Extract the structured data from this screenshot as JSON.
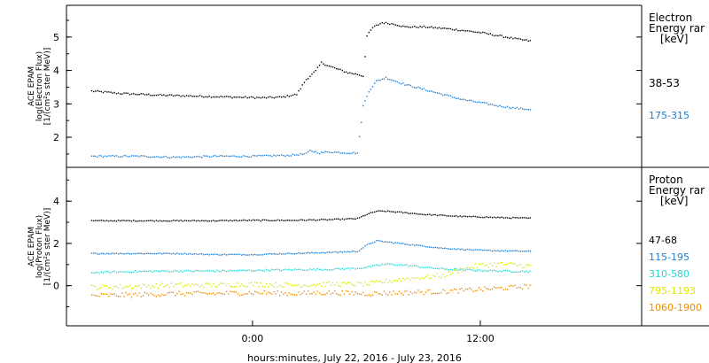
{
  "footer": {
    "xlabel": "hours:minutes, July 22, 2016 - July 23, 2016"
  },
  "colors": {
    "black": "#000000",
    "blue": "#1e7fd6",
    "cyan": "#22d6d6",
    "yellow": "#d8e800",
    "orange": "#f08c00"
  },
  "chart_data": [
    {
      "type": "scatter",
      "panel": "electron",
      "ylabel_lines": [
        "ACE EPAM",
        "log(Electron Flux)",
        "[1/(cm²s ster MeV)]"
      ],
      "legend_title_lines": [
        "Electron",
        "Energy rar",
        "[keV]"
      ],
      "x_ticks": [],
      "y_ticks": [
        2,
        3,
        4,
        5
      ],
      "ylim": [
        1.1,
        5.95
      ],
      "xlim_hours": [
        -9.8,
        20.5
      ],
      "series": [
        {
          "name": "38-53",
          "color": "black",
          "points": [
            [
              -8.5,
              3.4
            ],
            [
              -7.0,
              3.33
            ],
            [
              -5.0,
              3.28
            ],
            [
              -3.0,
              3.25
            ],
            [
              -1.0,
              3.22
            ],
            [
              0.5,
              3.2
            ],
            [
              1.5,
              3.22
            ],
            [
              2.3,
              3.3
            ],
            [
              2.8,
              3.75
            ],
            [
              3.3,
              4.0
            ],
            [
              3.6,
              4.25
            ],
            [
              4.0,
              4.15
            ],
            [
              4.5,
              4.05
            ],
            [
              5.0,
              3.95
            ],
            [
              5.5,
              3.9
            ],
            [
              5.8,
              3.85
            ],
            [
              6.0,
              5.05
            ],
            [
              6.3,
              5.3
            ],
            [
              6.8,
              5.45
            ],
            [
              7.5,
              5.4
            ],
            [
              8.0,
              5.32
            ],
            [
              9.0,
              5.32
            ],
            [
              10.0,
              5.28
            ],
            [
              11.0,
              5.22
            ],
            [
              12.0,
              5.15
            ],
            [
              13.0,
              5.05
            ],
            [
              14.0,
              4.95
            ],
            [
              14.6,
              4.9
            ]
          ]
        },
        {
          "name": "175-315",
          "color": "blue",
          "points": [
            [
              -8.5,
              1.45
            ],
            [
              -6.0,
              1.45
            ],
            [
              -4.0,
              1.42
            ],
            [
              -2.0,
              1.45
            ],
            [
              0.0,
              1.45
            ],
            [
              2.0,
              1.48
            ],
            [
              2.8,
              1.52
            ],
            [
              3.0,
              1.62
            ],
            [
              3.5,
              1.55
            ],
            [
              4.0,
              1.58
            ],
            [
              5.0,
              1.55
            ],
            [
              5.5,
              1.55
            ],
            [
              5.8,
              2.95
            ],
            [
              6.1,
              3.4
            ],
            [
              6.5,
              3.7
            ],
            [
              7.0,
              3.8
            ],
            [
              7.5,
              3.7
            ],
            [
              8.0,
              3.6
            ],
            [
              9.0,
              3.45
            ],
            [
              10.0,
              3.3
            ],
            [
              11.0,
              3.15
            ],
            [
              12.0,
              3.05
            ],
            [
              13.0,
              2.95
            ],
            [
              14.0,
              2.88
            ],
            [
              14.6,
              2.85
            ]
          ]
        }
      ]
    },
    {
      "type": "scatter",
      "panel": "proton",
      "ylabel_lines": [
        "ACE EPAM",
        "log(Proton Flux)",
        "[1/(cm²s ster MeV)]"
      ],
      "legend_title_lines": [
        "Proton",
        "Energy rar",
        "[keV]"
      ],
      "x_ticks": [
        {
          "hour": 0,
          "label": "0:00"
        },
        {
          "hour": 12,
          "label": "12:00"
        }
      ],
      "y_ticks": [
        0,
        2,
        4
      ],
      "ylim": [
        -1.9,
        5.6
      ],
      "xlim_hours": [
        -9.8,
        20.5
      ],
      "series": [
        {
          "name": "47-68",
          "color": "black",
          "points": [
            [
              -8.5,
              3.1
            ],
            [
              -6.0,
              3.1
            ],
            [
              -4.0,
              3.1
            ],
            [
              -2.0,
              3.1
            ],
            [
              0.0,
              3.12
            ],
            [
              2.0,
              3.12
            ],
            [
              4.0,
              3.15
            ],
            [
              5.5,
              3.2
            ],
            [
              6.0,
              3.4
            ],
            [
              6.5,
              3.55
            ],
            [
              7.0,
              3.55
            ],
            [
              8.0,
              3.48
            ],
            [
              9.0,
              3.4
            ],
            [
              10.0,
              3.35
            ],
            [
              11.0,
              3.3
            ],
            [
              12.0,
              3.28
            ],
            [
              13.0,
              3.25
            ],
            [
              14.6,
              3.22
            ]
          ]
        },
        {
          "name": "115-195",
          "color": "blue",
          "points": [
            [
              -8.5,
              1.55
            ],
            [
              -6.0,
              1.55
            ],
            [
              -4.0,
              1.55
            ],
            [
              -2.0,
              1.5
            ],
            [
              0.0,
              1.5
            ],
            [
              2.0,
              1.55
            ],
            [
              4.0,
              1.6
            ],
            [
              5.5,
              1.65
            ],
            [
              6.0,
              1.95
            ],
            [
              6.5,
              2.15
            ],
            [
              7.0,
              2.1
            ],
            [
              8.0,
              2.0
            ],
            [
              9.0,
              1.9
            ],
            [
              10.0,
              1.8
            ],
            [
              11.0,
              1.75
            ],
            [
              12.0,
              1.7
            ],
            [
              13.0,
              1.68
            ],
            [
              14.6,
              1.65
            ]
          ]
        },
        {
          "name": "310-580",
          "color": "cyan",
          "points": [
            [
              -8.5,
              0.65
            ],
            [
              -6.0,
              0.7
            ],
            [
              -4.0,
              0.72
            ],
            [
              -2.0,
              0.72
            ],
            [
              0.0,
              0.75
            ],
            [
              2.0,
              0.78
            ],
            [
              4.0,
              0.8
            ],
            [
              5.5,
              0.85
            ],
            [
              6.0,
              0.9
            ],
            [
              7.0,
              1.05
            ],
            [
              8.0,
              1.0
            ],
            [
              9.0,
              0.9
            ],
            [
              10.0,
              0.82
            ],
            [
              11.0,
              0.78
            ],
            [
              12.0,
              0.75
            ],
            [
              13.0,
              0.72
            ],
            [
              14.6,
              0.7
            ]
          ]
        },
        {
          "name": "795-1193",
          "color": "yellow",
          "points": [
            [
              -8.5,
              -0.05
            ],
            [
              -6.0,
              0.0
            ],
            [
              -4.0,
              0.05
            ],
            [
              -2.0,
              0.05
            ],
            [
              0.0,
              0.1
            ],
            [
              2.0,
              0.05
            ],
            [
              4.0,
              0.1
            ],
            [
              6.0,
              0.1
            ],
            [
              8.0,
              0.35
            ],
            [
              10.0,
              0.5
            ],
            [
              11.0,
              0.8
            ],
            [
              12.0,
              1.0
            ],
            [
              13.0,
              1.05
            ],
            [
              14.0,
              1.0
            ],
            [
              14.6,
              0.95
            ]
          ]
        },
        {
          "name": "1060-1900",
          "color": "orange",
          "points": [
            [
              -8.5,
              -0.45
            ],
            [
              -6.0,
              -0.4
            ],
            [
              -4.0,
              -0.35
            ],
            [
              -2.0,
              -0.35
            ],
            [
              0.0,
              -0.3
            ],
            [
              2.0,
              -0.35
            ],
            [
              4.0,
              -0.3
            ],
            [
              6.0,
              -0.35
            ],
            [
              8.0,
              -0.3
            ],
            [
              10.0,
              -0.25
            ],
            [
              12.0,
              -0.15
            ],
            [
              13.0,
              -0.1
            ],
            [
              14.6,
              0.0
            ]
          ]
        }
      ]
    }
  ]
}
